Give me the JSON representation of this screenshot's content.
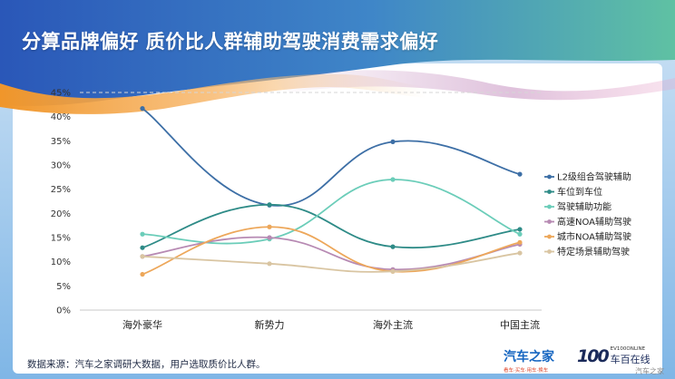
{
  "header": {
    "title": "分算品牌偏好 质价比人群辅助驾驶消费需求偏好"
  },
  "footer": {
    "source": "数据来源：汽车之家调研大数据，用户选取质价比人群。",
    "logo_autohome": "汽车之家",
    "logo_autohome_tagline": "看车·买车·用车·换车",
    "logo_100_mark": "100",
    "logo_100_en": "EV100ONLINE",
    "logo_100_cn": "车百在线",
    "watermark": "汽车之家"
  },
  "colors": {
    "header_left": "#2a57b8",
    "header_right": "#5fc1a3",
    "wave_orange": "#f0962a"
  },
  "chart_data": {
    "type": "line",
    "categories": [
      "海外豪华",
      "新势力",
      "海外主流",
      "中国主流"
    ],
    "ylim": [
      0,
      45
    ],
    "yticks": [
      "0%",
      "5%",
      "10%",
      "15%",
      "20%",
      "25%",
      "30%",
      "35%",
      "40%",
      "45%"
    ],
    "grid": false,
    "legend_position": "right",
    "series": [
      {
        "name": "L2级组合驾驶辅助",
        "values": [
          41.7,
          21.7,
          34.8,
          28.1
        ],
        "color": "#3d6fa6"
      },
      {
        "name": "车位到车位",
        "values": [
          12.9,
          21.8,
          13.1,
          16.7
        ],
        "color": "#2e8b87"
      },
      {
        "name": "驾驶辅助功能",
        "values": [
          15.7,
          14.7,
          27.0,
          15.7
        ],
        "color": "#6bcdb9"
      },
      {
        "name": "高速NOA辅助驾驶",
        "values": [
          11.1,
          15.0,
          8.4,
          13.6
        ],
        "color": "#b78ab3"
      },
      {
        "name": "城市NOA辅助驾驶",
        "values": [
          7.4,
          17.2,
          8.0,
          14.0
        ],
        "color": "#eda75a"
      },
      {
        "name": "特定场景辅助驾驶",
        "values": [
          11.1,
          9.6,
          8.0,
          11.8
        ],
        "color": "#d9c5a2"
      }
    ]
  }
}
